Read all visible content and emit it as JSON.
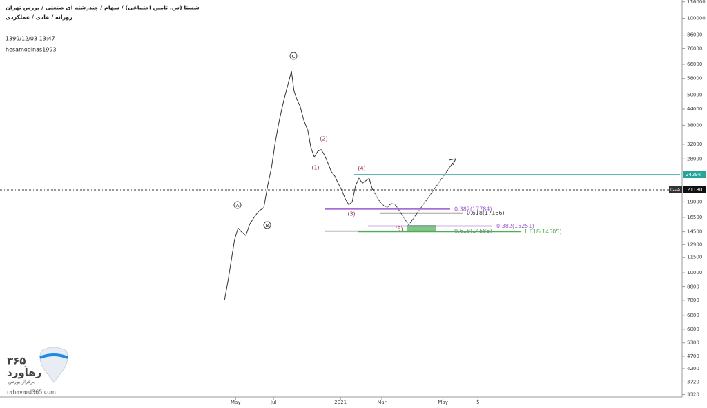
{
  "header": {
    "symbol_line": "شستا (س. تامین اجتماعی) / سهام / چندرشته ای صنعتی / بورس تهران",
    "interval_line": "روزانه / عادی / عملکردی",
    "datetime": "1399/12/03 13:47",
    "author": "hesamodinas1993"
  },
  "watermark": {
    "number": "۳۶۵",
    "brand": "رهآورد",
    "slogan": "برفراز بورس",
    "site": "rahavard365.com"
  },
  "chart_data": {
    "type": "line",
    "color": "#333333",
    "log_scale": true,
    "x": [
      46.2,
      46.9,
      47.8,
      48.3,
      49.0,
      49.7,
      50.6,
      51.4,
      52.3,
      53.3,
      54.3,
      55.1,
      55.9,
      56.6,
      57.3,
      58.0,
      58.7,
      59.4,
      60.0,
      60.5,
      61.1,
      61.8,
      62.5,
      63.4,
      64.0,
      64.7,
      65.4,
      66.1,
      66.8,
      67.5,
      68.2,
      68.9,
      69.6,
      70.4,
      71.1,
      71.8,
      72.5,
      73.2,
      73.9,
      74.6,
      75.3,
      76.0,
      76.7
    ],
    "values": [
      7800,
      9200,
      11800,
      13500,
      15000,
      14500,
      14000,
      15500,
      16500,
      17500,
      18000,
      22000,
      26000,
      32000,
      38000,
      44000,
      50000,
      56000,
      62000,
      52000,
      48000,
      45000,
      40000,
      36000,
      31000,
      28500,
      30000,
      30500,
      29000,
      27000,
      25000,
      24000,
      22500,
      21000,
      19500,
      18500,
      19000,
      22000,
      23500,
      22500,
      23000,
      23500,
      21180
    ],
    "xlim": [
      0,
      140
    ],
    "xticks": [
      {
        "value": 48.5,
        "label": "May"
      },
      {
        "value": 56.3,
        "label": "Jul"
      },
      {
        "value": 70.1,
        "label": "2021"
      },
      {
        "value": 78.6,
        "label": "Mar"
      },
      {
        "value": 91.2,
        "label": "May"
      },
      {
        "value": 98.4,
        "label": "5"
      }
    ],
    "ylim": [
      3250,
      118000
    ],
    "yticks": [
      3320,
      3720,
      4200,
      4700,
      5300,
      6000,
      6800,
      7800,
      8800,
      10000,
      11500,
      12900,
      14500,
      16500,
      19000,
      28000,
      32000,
      38000,
      44000,
      50000,
      58000,
      66000,
      76000,
      86000,
      100000,
      116000
    ],
    "last_price": 21180,
    "price_tag": "شستا",
    "resistance": 24294,
    "fib_levels": [
      {
        "label": "0.382(17784)",
        "value": 17784,
        "color": "#9b59d0"
      },
      {
        "label": "0.618(17166)",
        "value": 17166,
        "color": "#444444"
      },
      {
        "label": "0.382(15251)",
        "value": 15251,
        "color": "#9b59d0"
      },
      {
        "label": "0.618(14586)",
        "value": 14586,
        "color": "#777777"
      },
      {
        "label": "1.618(14505)",
        "value": 14505,
        "color": "#4caf50"
      }
    ],
    "wave_labels": [
      "A",
      "B",
      "C",
      "(1)",
      "(2)",
      "(3)",
      "(4)",
      "(5)"
    ]
  }
}
